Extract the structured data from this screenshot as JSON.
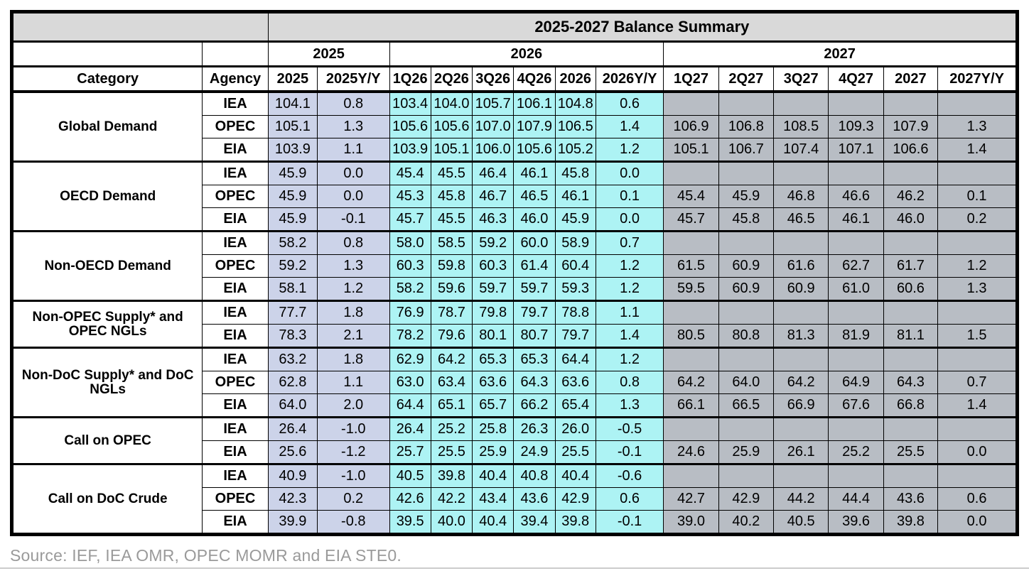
{
  "colors": {
    "header_bg": "#d9d9d9",
    "col_2025_bg": "#ccd3e9",
    "col_2026_bg": "#adf3f4",
    "col_2027_bg": "#b8bdc4",
    "border": "#000000",
    "source_text": "#9a9a9a"
  },
  "chart_data": {
    "type": "table",
    "title": "2025-2027 Balance Summary",
    "source": "Source: IEF, IEA OMR, OPEC MOMR and EIA STE0.",
    "year_groups": [
      {
        "label": "2025",
        "span": 2
      },
      {
        "label": "2026",
        "span": 6
      },
      {
        "label": "2027",
        "span": 6
      }
    ],
    "columns": [
      "Category",
      "Agency",
      "2025",
      "2025Y/Y",
      "1Q26",
      "2Q26",
      "3Q26",
      "4Q26",
      "2026",
      "2026Y/Y",
      "1Q27",
      "2Q27",
      "3Q27",
      "4Q27",
      "2027",
      "2027Y/Y"
    ],
    "groups": [
      {
        "category": "Global Demand",
        "rows": [
          {
            "agency": "IEA",
            "values": [
              "104.1",
              "0.8",
              "103.4",
              "104.0",
              "105.7",
              "106.1",
              "104.8",
              "0.6",
              "",
              "",
              "",
              "",
              "",
              ""
            ]
          },
          {
            "agency": "OPEC",
            "values": [
              "105.1",
              "1.3",
              "105.6",
              "105.6",
              "107.0",
              "107.9",
              "106.5",
              "1.4",
              "106.9",
              "106.8",
              "108.5",
              "109.3",
              "107.9",
              "1.3"
            ]
          },
          {
            "agency": "EIA",
            "values": [
              "103.9",
              "1.1",
              "103.9",
              "105.1",
              "106.0",
              "105.6",
              "105.2",
              "1.2",
              "105.1",
              "106.7",
              "107.4",
              "107.1",
              "106.6",
              "1.4"
            ]
          }
        ]
      },
      {
        "category": "OECD Demand",
        "rows": [
          {
            "agency": "IEA",
            "values": [
              "45.9",
              "0.0",
              "45.4",
              "45.5",
              "46.4",
              "46.1",
              "45.8",
              "0.0",
              "",
              "",
              "",
              "",
              "",
              ""
            ]
          },
          {
            "agency": "OPEC",
            "values": [
              "45.9",
              "0.0",
              "45.3",
              "45.8",
              "46.7",
              "46.5",
              "46.1",
              "0.1",
              "45.4",
              "45.9",
              "46.8",
              "46.6",
              "46.2",
              "0.1"
            ]
          },
          {
            "agency": "EIA",
            "values": [
              "45.9",
              "-0.1",
              "45.7",
              "45.5",
              "46.3",
              "46.0",
              "45.9",
              "0.0",
              "45.7",
              "45.8",
              "46.5",
              "46.1",
              "46.0",
              "0.2"
            ]
          }
        ]
      },
      {
        "category": "Non-OECD Demand",
        "rows": [
          {
            "agency": "IEA",
            "values": [
              "58.2",
              "0.8",
              "58.0",
              "58.5",
              "59.2",
              "60.0",
              "58.9",
              "0.7",
              "",
              "",
              "",
              "",
              "",
              ""
            ]
          },
          {
            "agency": "OPEC",
            "values": [
              "59.2",
              "1.3",
              "60.3",
              "59.8",
              "60.3",
              "61.4",
              "60.4",
              "1.2",
              "61.5",
              "60.9",
              "61.6",
              "62.7",
              "61.7",
              "1.2"
            ]
          },
          {
            "agency": "EIA",
            "values": [
              "58.1",
              "1.2",
              "58.2",
              "59.6",
              "59.7",
              "59.7",
              "59.3",
              "1.2",
              "59.5",
              "60.9",
              "60.9",
              "61.0",
              "60.6",
              "1.3"
            ]
          }
        ]
      },
      {
        "category": "Non-OPEC Supply* and OPEC NGLs",
        "rows": [
          {
            "agency": "IEA",
            "values": [
              "77.7",
              "1.8",
              "76.9",
              "78.7",
              "79.8",
              "79.7",
              "78.8",
              "1.1",
              "",
              "",
              "",
              "",
              "",
              ""
            ]
          },
          {
            "agency": "EIA",
            "values": [
              "78.3",
              "2.1",
              "78.2",
              "79.6",
              "80.1",
              "80.7",
              "79.7",
              "1.4",
              "80.5",
              "80.8",
              "81.3",
              "81.9",
              "81.1",
              "1.5"
            ]
          }
        ]
      },
      {
        "category": "Non-DoC Supply* and DoC NGLs",
        "rows": [
          {
            "agency": "IEA",
            "values": [
              "63.2",
              "1.8",
              "62.9",
              "64.2",
              "65.3",
              "65.3",
              "64.4",
              "1.2",
              "",
              "",
              "",
              "",
              "",
              ""
            ]
          },
          {
            "agency": "OPEC",
            "values": [
              "62.8",
              "1.1",
              "63.0",
              "63.4",
              "63.6",
              "64.3",
              "63.6",
              "0.8",
              "64.2",
              "64.0",
              "64.2",
              "64.9",
              "64.3",
              "0.7"
            ]
          },
          {
            "agency": "EIA",
            "values": [
              "64.0",
              "2.0",
              "64.4",
              "65.1",
              "65.7",
              "66.2",
              "65.4",
              "1.3",
              "66.1",
              "66.5",
              "66.9",
              "67.6",
              "66.8",
              "1.4"
            ]
          }
        ]
      },
      {
        "category": "Call on OPEC",
        "rows": [
          {
            "agency": "IEA",
            "values": [
              "26.4",
              "-1.0",
              "26.4",
              "25.2",
              "25.8",
              "26.3",
              "26.0",
              "-0.5",
              "",
              "",
              "",
              "",
              "",
              ""
            ]
          },
          {
            "agency": "EIA",
            "values": [
              "25.6",
              "-1.2",
              "25.7",
              "25.5",
              "25.9",
              "24.9",
              "25.5",
              "-0.1",
              "24.6",
              "25.9",
              "26.1",
              "25.2",
              "25.5",
              "0.0"
            ]
          }
        ]
      },
      {
        "category": "Call on DoC Crude",
        "rows": [
          {
            "agency": "IEA",
            "values": [
              "40.9",
              "-1.0",
              "40.5",
              "39.8",
              "40.4",
              "40.8",
              "40.4",
              "-0.6",
              "",
              "",
              "",
              "",
              "",
              ""
            ]
          },
          {
            "agency": "OPEC",
            "values": [
              "42.3",
              "0.2",
              "42.6",
              "42.2",
              "43.4",
              "43.6",
              "42.9",
              "0.6",
              "42.7",
              "42.9",
              "44.2",
              "44.4",
              "43.6",
              "0.6"
            ]
          },
          {
            "agency": "EIA",
            "values": [
              "39.9",
              "-0.8",
              "39.5",
              "40.0",
              "40.4",
              "39.4",
              "39.8",
              "-0.1",
              "39.0",
              "40.2",
              "40.5",
              "39.6",
              "39.8",
              "0.0"
            ]
          }
        ]
      }
    ]
  }
}
